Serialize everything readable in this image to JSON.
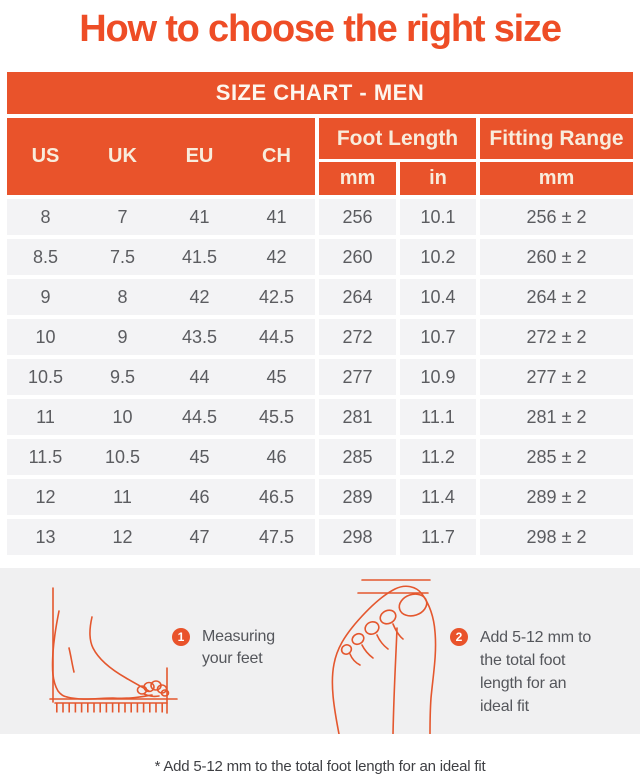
{
  "title": "How to choose the right size",
  "table": {
    "header": "SIZE CHART - MEN",
    "col_us": "US",
    "col_uk": "UK",
    "col_eu": "EU",
    "col_ch": "CH",
    "col_foot_length": "Foot Length",
    "col_fitting_range": "Fitting Range",
    "sub_mm": "mm",
    "sub_in": "in",
    "sub_range_mm": "mm",
    "rows": [
      [
        "8",
        "7",
        "41",
        "41",
        "256",
        "10.1",
        "256 ± 2"
      ],
      [
        "8.5",
        "7.5",
        "41.5",
        "42",
        "260",
        "10.2",
        "260 ± 2"
      ],
      [
        "9",
        "8",
        "42",
        "42.5",
        "264",
        "10.4",
        "264 ± 2"
      ],
      [
        "10",
        "9",
        "43.5",
        "44.5",
        "272",
        "10.7",
        "272 ± 2"
      ],
      [
        "10.5",
        "9.5",
        "44",
        "45",
        "277",
        "10.9",
        "277 ± 2"
      ],
      [
        "11",
        "10",
        "44.5",
        "45.5",
        "281",
        "11.1",
        "281 ± 2"
      ],
      [
        "11.5",
        "10.5",
        "45",
        "46",
        "285",
        "11.2",
        "285 ± 2"
      ],
      [
        "12",
        "11",
        "46",
        "46.5",
        "289",
        "11.4",
        "289 ± 2"
      ],
      [
        "13",
        "12",
        "47",
        "47.5",
        "298",
        "11.7",
        "298 ± 2"
      ]
    ]
  },
  "steps": [
    {
      "number": "1",
      "icon": "foot-side-measuring-icon",
      "lines": [
        "Measuring",
        "your feet"
      ]
    },
    {
      "number": "2",
      "icon": "foot-top-view-icon",
      "lines": [
        "Add 5-12 mm to",
        "the total foot",
        "length for an",
        "ideal fit"
      ]
    }
  ],
  "footnote": "* Add 5-12 mm to the total foot length for an ideal fit",
  "colors": {
    "accent_orange": "#E9532B",
    "title_orange": "#EE4D26",
    "header_text": "#F8ECDC",
    "bar_text": "#FDF6EE",
    "row_bg": "#F3F3F5",
    "data_text": "#5B5C60",
    "panel_bg": "#F0F0F1",
    "caption_text": "#54565B",
    "footnote_text": "#3E3F43",
    "illustration_stroke": "#E4572E"
  }
}
